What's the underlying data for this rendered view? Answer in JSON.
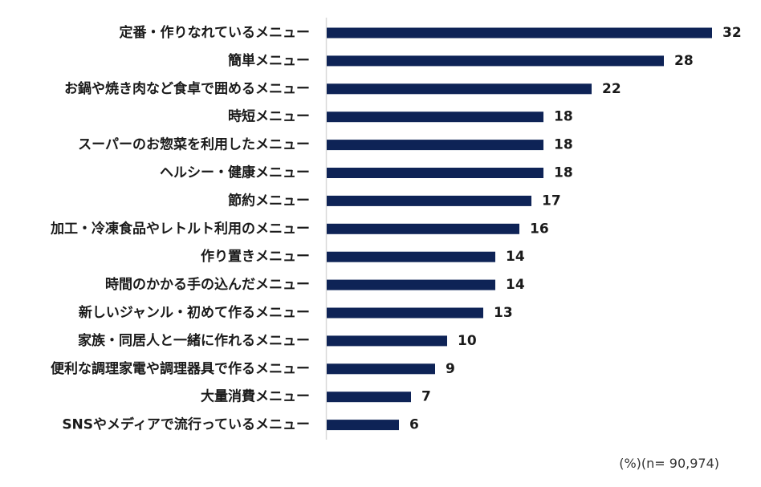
{
  "chart_data": {
    "type": "bar",
    "orientation": "horizontal",
    "categories": [
      "定番・作りなれているメニュー",
      "簡単メニュー",
      "お鍋や焼き肉など食卓で囲めるメニュー",
      "時短メニュー",
      "スーパーのお惣菜を利用したメニュー",
      "ヘルシー・健康メニュー",
      "節約メニュー",
      "加工・冷凍食品やレトルト利用のメニュー",
      "作り置きメニュー",
      "時間のかかる手の込んだメニュー",
      "新しいジャンル・初めて作るメニュー",
      "家族・同居人と一緒に作れるメニュー",
      "便利な調理家電や調理器具で作るメニュー",
      "大量消費メニュー",
      "SNSやメディアで流行っているメニュー"
    ],
    "values": [
      32,
      28,
      22,
      18,
      18,
      18,
      17,
      16,
      14,
      14,
      13,
      10,
      9,
      7,
      6
    ],
    "data_labels": [
      "32",
      "28",
      "22",
      "18",
      "18",
      "18",
      "17",
      "16",
      "14",
      "14",
      "13",
      "10",
      "9",
      "7",
      "6"
    ],
    "title": "",
    "xlabel": "",
    "ylabel": "",
    "xlim": [
      0,
      32
    ],
    "grid": false,
    "legend": "none",
    "bar_color": "#0e2356",
    "axis_color": "#d9d9d9",
    "note": "(%)(n= 90,974)"
  }
}
